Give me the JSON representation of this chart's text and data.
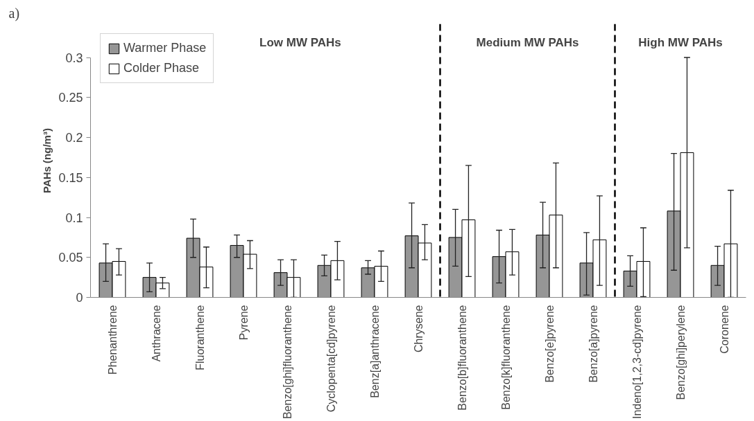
{
  "chart_data": {
    "type": "bar",
    "ylabel": "PAHs (ng/m³)",
    "categories": [
      "Phenanthrene",
      "Anthracene",
      "Fluoranthene",
      "Pyrene",
      "Benzo[ghi]fluoranthene",
      "Cyclopenta[cd]pyrene",
      "Benz[a]anthracene",
      "Chrysene",
      "Benzo[b]fluoranthene",
      "Benzo[k]fluoranthene",
      "Benzo[e]pyrene",
      "Benzo[a]pyrene",
      "Indeno[1,2,3-cd]pyrene",
      "Benzo[ghi]perylene",
      "Coronene"
    ],
    "series": [
      {
        "name": "Warmer Phase",
        "color": "#969696",
        "values": [
          0.043,
          0.025,
          0.074,
          0.065,
          0.031,
          0.04,
          0.037,
          0.077,
          0.075,
          0.051,
          0.078,
          0.043,
          0.033,
          0.108,
          0.04
        ],
        "errors": [
          [
            0.02,
            0.067
          ],
          [
            0.007,
            0.043
          ],
          [
            0.05,
            0.098
          ],
          [
            0.05,
            0.078
          ],
          [
            0.015,
            0.047
          ],
          [
            0.027,
            0.053
          ],
          [
            0.029,
            0.046
          ],
          [
            0.037,
            0.118
          ],
          [
            0.039,
            0.11
          ],
          [
            0.018,
            0.084
          ],
          [
            0.037,
            0.119
          ],
          [
            0.003,
            0.081
          ],
          [
            0.014,
            0.052
          ],
          [
            0.034,
            0.18
          ],
          [
            0.015,
            0.064
          ]
        ]
      },
      {
        "name": "Colder Phase",
        "color": "#ffffff",
        "values": [
          0.045,
          0.018,
          0.038,
          0.054,
          0.025,
          0.046,
          0.039,
          0.068,
          0.097,
          0.057,
          0.103,
          0.072,
          0.045,
          0.181,
          0.067
        ],
        "errors": [
          [
            0.028,
            0.061
          ],
          [
            0.011,
            0.025
          ],
          [
            0.012,
            0.063
          ],
          [
            0.036,
            0.071
          ],
          [
            0,
            0.047
          ],
          [
            0.022,
            0.07
          ],
          [
            0.02,
            0.058
          ],
          [
            0.047,
            0.091
          ],
          [
            0.026,
            0.165
          ],
          [
            0.028,
            0.085
          ],
          [
            0.037,
            0.168
          ],
          [
            0.015,
            0.127
          ],
          [
            0.001,
            0.087
          ],
          [
            0.062,
            0.3
          ],
          [
            0,
            0.134
          ]
        ]
      }
    ],
    "ylim": [
      0,
      0.3
    ],
    "yticks": [
      0,
      0.05,
      0.1,
      0.15,
      0.2,
      0.25,
      0.3
    ],
    "annotations": [
      "a)",
      "Low MW PAHs",
      "Medium MW PAHs",
      "High MW PAHs"
    ],
    "grid": false,
    "legend": "top left"
  }
}
